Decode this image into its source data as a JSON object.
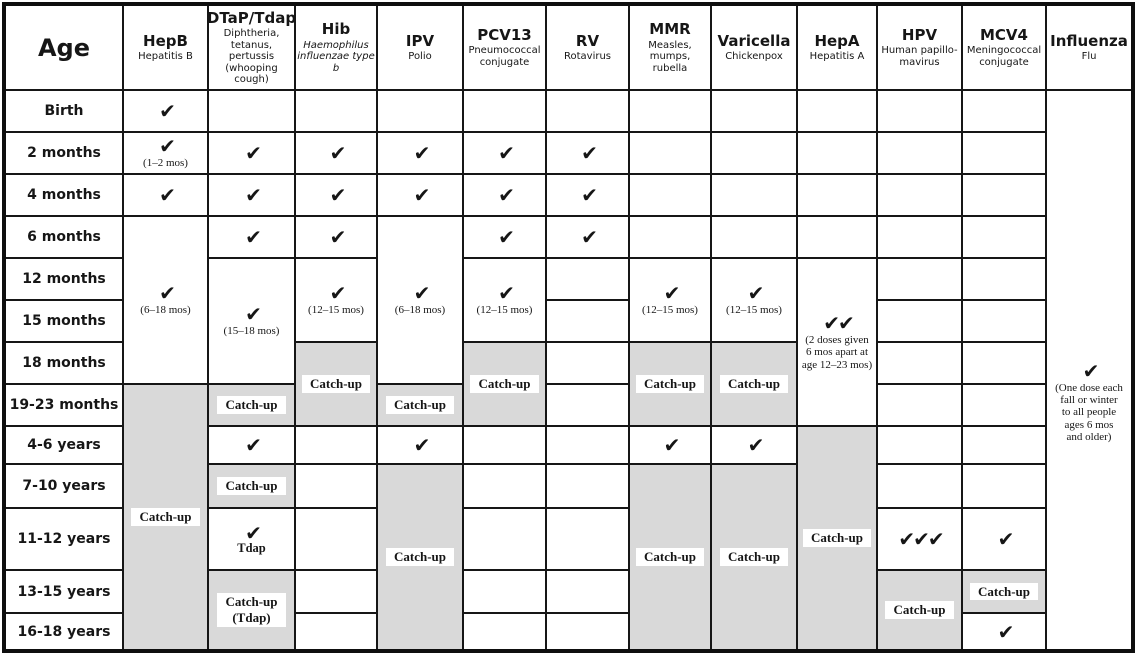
{
  "colors": {
    "grid_line": "#161616",
    "cell_bg": "#ffffff",
    "catchup_bg": "#d9d9d9",
    "ink": "#161616"
  },
  "icons": {
    "check_glyph": "✔"
  },
  "table": {
    "age_header": "Age",
    "columns": [
      {
        "key": "hepb",
        "abbr": "HepB",
        "subtitle": "Hepatitis B",
        "italic": false
      },
      {
        "key": "dtap",
        "abbr": "DTaP/Tdap",
        "subtitle": "Diphtheria, tetanus, pertussis (whooping cough)",
        "italic": false
      },
      {
        "key": "hib",
        "abbr": "Hib",
        "subtitle": "Haemophilus influenzae type b",
        "italic": true
      },
      {
        "key": "ipv",
        "abbr": "IPV",
        "subtitle": "Polio",
        "italic": false
      },
      {
        "key": "pcv13",
        "abbr": "PCV13",
        "subtitle": "Pneumococcal conjugate",
        "italic": false
      },
      {
        "key": "rv",
        "abbr": "RV",
        "subtitle": "Rotavirus",
        "italic": false
      },
      {
        "key": "mmr",
        "abbr": "MMR",
        "subtitle": "Measles, mumps, rubella",
        "italic": false
      },
      {
        "key": "varicella",
        "abbr": "Varicella",
        "subtitle": "Chickenpox",
        "italic": false
      },
      {
        "key": "hepa",
        "abbr": "HepA",
        "subtitle": "Hepatitis A",
        "italic": false
      },
      {
        "key": "hpv",
        "abbr": "HPV",
        "subtitle": "Human papillo-mavirus",
        "italic": false
      },
      {
        "key": "mcv4",
        "abbr": "MCV4",
        "subtitle": "Meningococcal conjugate",
        "italic": false
      },
      {
        "key": "influenza",
        "abbr": "Influenza",
        "subtitle": "Flu",
        "italic": false
      }
    ],
    "age_rows": [
      "Birth",
      "2 months",
      "4 months",
      "6 months",
      "12 months",
      "15 months",
      "18 months",
      "19-23 months",
      "4-6 years",
      "7-10 years",
      "11-12 years",
      "13-15 years",
      "16-18 years"
    ],
    "catchup_text": "Catch-up",
    "cells": [
      {
        "c": 1,
        "r": 1,
        "t": "check"
      },
      {
        "c": 1,
        "r": 2,
        "t": "check",
        "note": [
          "(1–2 mos)"
        ]
      },
      {
        "c": 1,
        "r": 3,
        "t": "check"
      },
      {
        "c": 1,
        "r": 4,
        "rs": 4,
        "t": "check",
        "note": [
          "(6–18 mos)"
        ]
      },
      {
        "c": 1,
        "r": 8,
        "rs": 6,
        "t": "catchup",
        "label": [
          "Catch-up"
        ]
      },
      {
        "c": 2,
        "r": 2,
        "t": "check"
      },
      {
        "c": 2,
        "r": 3,
        "t": "check"
      },
      {
        "c": 2,
        "r": 4,
        "t": "check"
      },
      {
        "c": 2,
        "r": 5,
        "rs": 3,
        "t": "check",
        "note": [
          "(15–18 mos)"
        ]
      },
      {
        "c": 2,
        "r": 8,
        "t": "catchup",
        "label": [
          "Catch-up"
        ]
      },
      {
        "c": 2,
        "r": 9,
        "t": "check"
      },
      {
        "c": 2,
        "r": 10,
        "t": "catchup",
        "label": [
          "Catch-up"
        ]
      },
      {
        "c": 2,
        "r": 11,
        "t": "check",
        "note": [
          "Tdap"
        ],
        "bold_note": true
      },
      {
        "c": 2,
        "r": 12,
        "rs": 2,
        "t": "catchup",
        "label": [
          "Catch-up",
          "(Tdap)"
        ]
      },
      {
        "c": 3,
        "r": 2,
        "t": "check"
      },
      {
        "c": 3,
        "r": 3,
        "t": "check"
      },
      {
        "c": 3,
        "r": 4,
        "t": "check"
      },
      {
        "c": 3,
        "r": 5,
        "rs": 2,
        "t": "check",
        "note": [
          "(12–15 mos)"
        ]
      },
      {
        "c": 3,
        "r": 7,
        "rs": 2,
        "t": "catchup",
        "label": [
          "Catch-up"
        ]
      },
      {
        "c": 4,
        "r": 2,
        "t": "check"
      },
      {
        "c": 4,
        "r": 3,
        "t": "check"
      },
      {
        "c": 4,
        "r": 4,
        "rs": 4,
        "t": "check",
        "note": [
          "(6–18 mos)"
        ]
      },
      {
        "c": 4,
        "r": 8,
        "t": "catchup",
        "label": [
          "Catch-up"
        ]
      },
      {
        "c": 4,
        "r": 9,
        "t": "check"
      },
      {
        "c": 4,
        "r": 10,
        "rs": 4,
        "t": "catchup",
        "label": [
          "Catch-up"
        ]
      },
      {
        "c": 5,
        "r": 2,
        "t": "check"
      },
      {
        "c": 5,
        "r": 3,
        "t": "check"
      },
      {
        "c": 5,
        "r": 4,
        "t": "check"
      },
      {
        "c": 5,
        "r": 5,
        "rs": 2,
        "t": "check",
        "note": [
          "(12–15 mos)"
        ]
      },
      {
        "c": 5,
        "r": 7,
        "rs": 2,
        "t": "catchup",
        "label": [
          "Catch-up"
        ]
      },
      {
        "c": 6,
        "r": 2,
        "t": "check"
      },
      {
        "c": 6,
        "r": 3,
        "t": "check"
      },
      {
        "c": 6,
        "r": 4,
        "t": "check"
      },
      {
        "c": 7,
        "r": 5,
        "rs": 2,
        "t": "check",
        "note": [
          "(12–15 mos)"
        ]
      },
      {
        "c": 7,
        "r": 7,
        "rs": 2,
        "t": "catchup",
        "label": [
          "Catch-up"
        ]
      },
      {
        "c": 7,
        "r": 9,
        "t": "check"
      },
      {
        "c": 7,
        "r": 10,
        "rs": 4,
        "t": "catchup",
        "label": [
          "Catch-up"
        ]
      },
      {
        "c": 8,
        "r": 5,
        "rs": 2,
        "t": "check",
        "note": [
          "(12–15 mos)"
        ]
      },
      {
        "c": 8,
        "r": 7,
        "rs": 2,
        "t": "catchup",
        "label": [
          "Catch-up"
        ]
      },
      {
        "c": 8,
        "r": 9,
        "t": "check"
      },
      {
        "c": 8,
        "r": 10,
        "rs": 4,
        "t": "catchup",
        "label": [
          "Catch-up"
        ]
      },
      {
        "c": 9,
        "r": 5,
        "rs": 4,
        "t": "check",
        "n": 2,
        "note": [
          "(2 doses given",
          "6 mos apart at",
          "age 12–23 mos)"
        ]
      },
      {
        "c": 9,
        "r": 9,
        "rs": 5,
        "t": "catchup",
        "label": [
          "Catch-up"
        ]
      },
      {
        "c": 10,
        "r": 11,
        "t": "check",
        "n": 3
      },
      {
        "c": 10,
        "r": 12,
        "rs": 2,
        "t": "catchup",
        "label": [
          "Catch-up"
        ]
      },
      {
        "c": 11,
        "r": 11,
        "t": "check"
      },
      {
        "c": 11,
        "r": 12,
        "t": "catchup",
        "label": [
          "Catch-up"
        ]
      },
      {
        "c": 11,
        "r": 13,
        "t": "check"
      },
      {
        "c": 12,
        "r": 1,
        "rs": 13,
        "t": "check",
        "shift": true,
        "note": [
          "(One dose each",
          "fall or winter",
          "to all people",
          "ages 6 mos",
          "and older)"
        ]
      }
    ]
  }
}
